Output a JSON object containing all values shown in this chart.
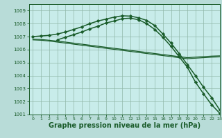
{
  "background_color": "#b8dcd8",
  "plot_bg_color": "#c8ecea",
  "grid_color": "#90b8a8",
  "line_color": "#1a5c2a",
  "xlabel": "Graphe pression niveau de la mer (hPa)",
  "xlabel_fontsize": 7,
  "ylim": [
    1001,
    1009.5
  ],
  "xlim": [
    -0.5,
    23
  ],
  "yticks": [
    1001,
    1002,
    1003,
    1004,
    1005,
    1006,
    1007,
    1008,
    1009
  ],
  "xticks": [
    0,
    1,
    2,
    3,
    4,
    5,
    6,
    7,
    8,
    9,
    10,
    11,
    12,
    13,
    14,
    15,
    16,
    17,
    18,
    19,
    20,
    21,
    22,
    23
  ],
  "series": [
    {
      "x": [
        0,
        1,
        2,
        3,
        4,
        5,
        6,
        7,
        8,
        9,
        10,
        11,
        12,
        13,
        14,
        15,
        16,
        17,
        18,
        19,
        20,
        21,
        22,
        23
      ],
      "y": [
        1007.0,
        1007.05,
        1007.1,
        1007.2,
        1007.35,
        1007.55,
        1007.75,
        1008.0,
        1008.2,
        1008.35,
        1008.5,
        1008.6,
        1008.58,
        1008.45,
        1008.25,
        1007.85,
        1007.2,
        1006.5,
        1005.7,
        1004.85,
        1004.0,
        1003.1,
        1002.3,
        1001.35
      ],
      "marker": "D",
      "markersize": 2.2,
      "linewidth": 1.1
    },
    {
      "x": [
        3,
        4,
        5,
        6,
        7,
        8,
        9,
        10,
        11,
        12,
        13,
        14,
        15,
        16,
        17,
        18,
        19,
        20,
        21,
        22,
        23
      ],
      "y": [
        1006.75,
        1006.95,
        1007.15,
        1007.35,
        1007.6,
        1007.8,
        1008.05,
        1008.2,
        1008.38,
        1008.42,
        1008.3,
        1008.0,
        1007.55,
        1006.95,
        1006.25,
        1005.45,
        1004.65,
        1003.5,
        1002.6,
        1001.75,
        1001.1
      ],
      "marker": "D",
      "markersize": 2.2,
      "linewidth": 1.1
    },
    {
      "x": [
        0,
        1,
        2,
        3,
        4,
        5,
        6,
        7,
        8,
        9,
        10,
        11,
        12,
        13,
        14,
        15,
        16,
        17,
        18,
        19,
        20,
        21,
        22,
        23
      ],
      "y": [
        1006.8,
        1006.78,
        1006.72,
        1006.65,
        1006.58,
        1006.5,
        1006.42,
        1006.34,
        1006.26,
        1006.18,
        1006.1,
        1006.02,
        1005.94,
        1005.86,
        1005.78,
        1005.7,
        1005.62,
        1005.54,
        1005.46,
        1005.38,
        1005.42,
        1005.46,
        1005.5,
        1005.52
      ],
      "marker": null,
      "linewidth": 0.9
    },
    {
      "x": [
        0,
        1,
        2,
        3,
        4,
        5,
        6,
        7,
        8,
        9,
        10,
        11,
        12,
        13,
        14,
        15,
        16,
        17,
        18,
        19,
        20,
        21,
        22,
        23
      ],
      "y": [
        1006.75,
        1006.72,
        1006.66,
        1006.58,
        1006.5,
        1006.42,
        1006.34,
        1006.26,
        1006.18,
        1006.1,
        1006.02,
        1005.94,
        1005.86,
        1005.78,
        1005.7,
        1005.62,
        1005.54,
        1005.46,
        1005.38,
        1005.3,
        1005.34,
        1005.38,
        1005.42,
        1005.44
      ],
      "marker": null,
      "linewidth": 0.9
    }
  ]
}
